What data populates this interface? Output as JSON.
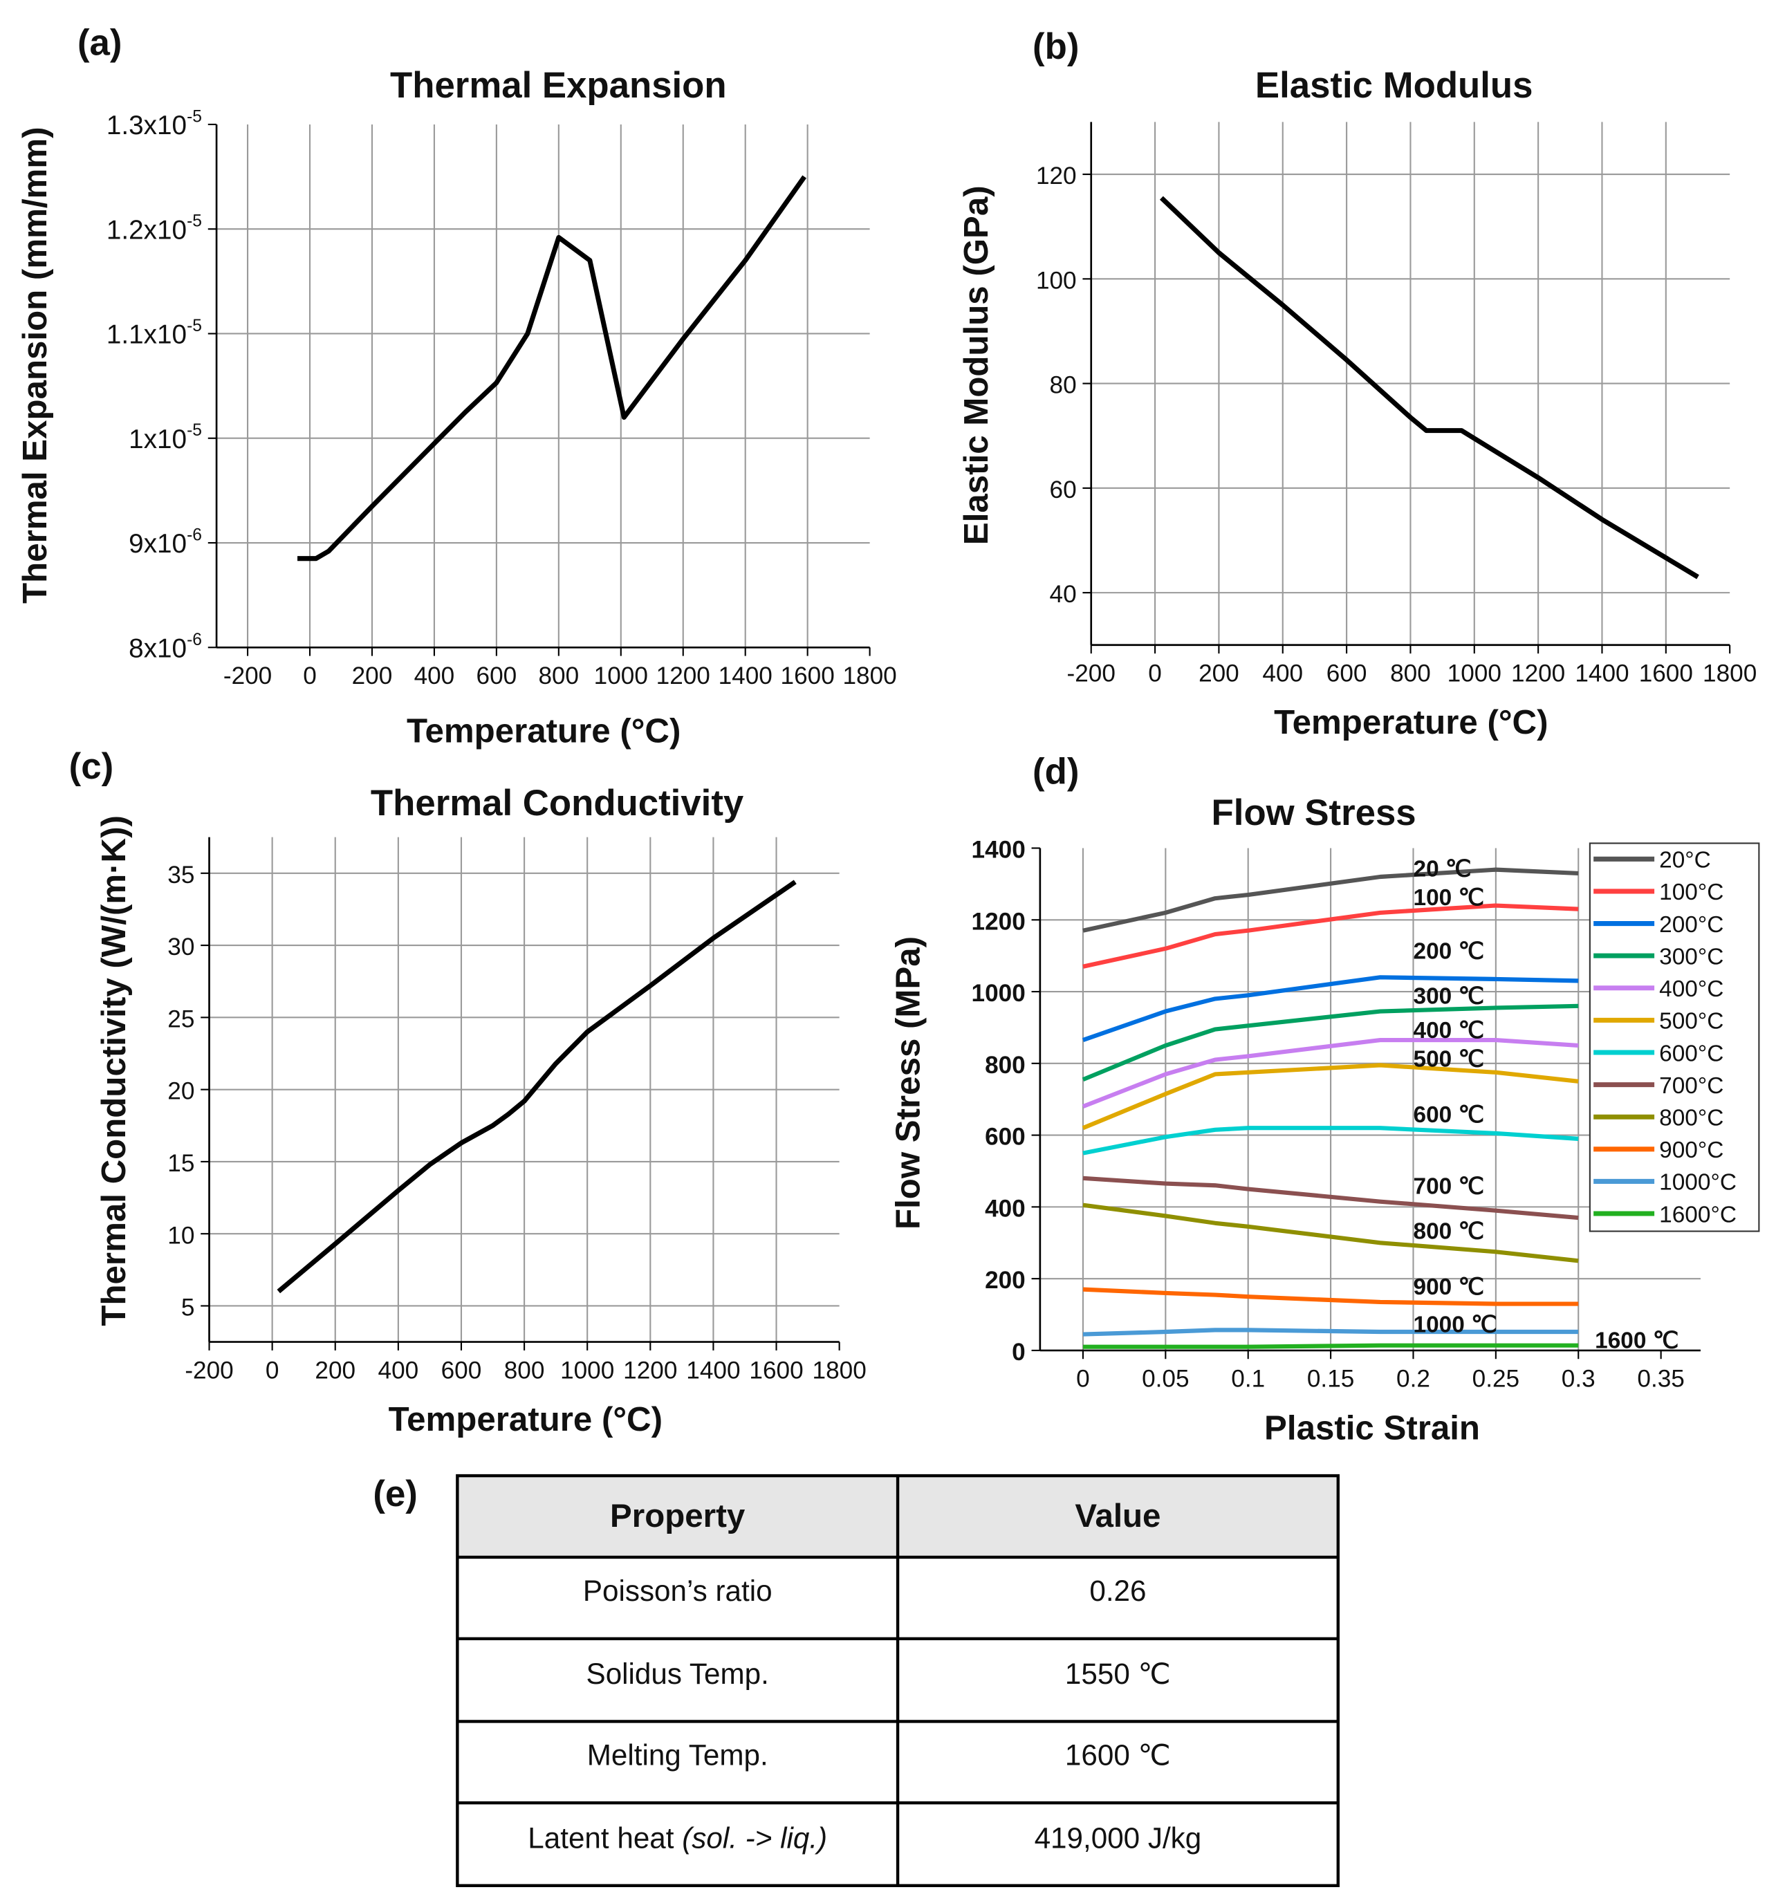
{
  "chart_data": [
    {
      "panel": "(a)",
      "type": "line",
      "title": "Thermal Expansion",
      "xlabel": "Temperature (°C)",
      "ylabel": "Thermal Expansion (mm/mm)",
      "xlim": [
        -300,
        1800
      ],
      "ylim": [
        8e-06,
        1.3e-05
      ],
      "xticks": [
        -200,
        0,
        200,
        400,
        600,
        800,
        1000,
        1200,
        1400,
        1600,
        1800
      ],
      "xtick_labels": [
        "-200",
        "0",
        "200",
        "400",
        "600",
        "800",
        "1000",
        "1200",
        "1400",
        "1600",
        "1800"
      ],
      "yticks": [
        8e-06,
        9e-06,
        1e-05,
        1.1e-05,
        1.2e-05,
        1.3e-05
      ],
      "ytick_labels": [
        [
          "8x10",
          "-6"
        ],
        [
          "9x10",
          "-6"
        ],
        [
          "1x10",
          "-5"
        ],
        [
          "1.1x10",
          "-5"
        ],
        [
          "1.2x10",
          "-5"
        ],
        [
          "1.3x10",
          "-5"
        ]
      ],
      "grid": true,
      "series": [
        {
          "name": "Thermal Expansion",
          "color": "#000000",
          "x": [
            -40,
            20,
            60,
            200,
            400,
            500,
            600,
            700,
            800,
            900,
            1010,
            1200,
            1400,
            1590
          ],
          "y": [
            8.85e-06,
            8.85e-06,
            8.92e-06,
            9.35e-06,
            9.95e-06,
            1.025e-05,
            1.053e-05,
            1.1e-05,
            1.192e-05,
            1.17e-05,
            1.02e-05,
            1.095e-05,
            1.17e-05,
            1.25e-05
          ]
        }
      ]
    },
    {
      "panel": "(b)",
      "type": "line",
      "title": "Elastic Modulus",
      "xlabel": "Temperature (°C)",
      "ylabel": "Elastic Modulus (GPa)",
      "xlim": [
        -200,
        1800
      ],
      "ylim": [
        30,
        130
      ],
      "xticks": [
        -200,
        0,
        200,
        400,
        600,
        800,
        1000,
        1200,
        1400,
        1600,
        1800
      ],
      "xtick_labels": [
        "-200",
        "0",
        "200",
        "400",
        "600",
        "800",
        "1000",
        "1200",
        "1400",
        "1600",
        "1800"
      ],
      "yticks": [
        40,
        60,
        80,
        100,
        120
      ],
      "ytick_labels": [
        "40",
        "60",
        "80",
        "100",
        "120"
      ],
      "grid": true,
      "series": [
        {
          "name": "Elastic Modulus",
          "color": "#000000",
          "x": [
            20,
            200,
            400,
            600,
            800,
            850,
            960,
            1200,
            1400,
            1700
          ],
          "y": [
            115.5,
            105,
            95,
            84.5,
            73.5,
            71,
            71,
            62,
            54,
            43
          ]
        }
      ]
    },
    {
      "panel": "(c)",
      "type": "line",
      "title": "Thermal Conductivity",
      "xlabel": "Temperature (°C)",
      "ylabel": "Thermal Conductivity (W/(m·K))",
      "xlim": [
        -200,
        1800
      ],
      "ylim": [
        2.5,
        37.5
      ],
      "xticks": [
        -200,
        0,
        200,
        400,
        600,
        800,
        1000,
        1200,
        1400,
        1600,
        1800
      ],
      "xtick_labels": [
        "-200",
        "0",
        "200",
        "400",
        "600",
        "800",
        "1000",
        "1200",
        "1400",
        "1600",
        "1800"
      ],
      "yticks": [
        5,
        10,
        15,
        20,
        25,
        30,
        35
      ],
      "ytick_labels": [
        "5",
        "10",
        "15",
        "20",
        "25",
        "30",
        "35"
      ],
      "grid": true,
      "series": [
        {
          "name": "Thermal Conductivity",
          "color": "#000000",
          "x": [
            20,
            200,
            400,
            500,
            600,
            700,
            750,
            800,
            900,
            1000,
            1200,
            1400,
            1660
          ],
          "y": [
            6,
            9.3,
            13,
            14.8,
            16.3,
            17.5,
            18.3,
            19.2,
            21.8,
            24,
            27.2,
            30.5,
            34.4
          ]
        }
      ]
    },
    {
      "panel": "(d)",
      "type": "line",
      "title": "Flow Stress",
      "xlabel": "Plastic Strain",
      "ylabel": "Flow Stress (MPa)",
      "xlim": [
        -0.026,
        0.374
      ],
      "ylim": [
        0,
        1400
      ],
      "xticks": [
        0,
        0.05,
        0.1,
        0.15,
        0.2,
        0.25,
        0.3,
        0.35
      ],
      "xtick_labels": [
        "0",
        "0.05",
        "0.1",
        "0.15",
        "0.2",
        "0.25",
        "0.3",
        "0.35"
      ],
      "yticks": [
        0,
        200,
        400,
        600,
        800,
        1000,
        1200,
        1400
      ],
      "ytick_labels": [
        "0",
        "200",
        "400",
        "600",
        "800",
        "1000",
        "1200",
        "1400"
      ],
      "grid": true,
      "legend_position": "right",
      "x": [
        0,
        0.05,
        0.08,
        0.1,
        0.18,
        0.25,
        0.3
      ],
      "series": [
        {
          "name": "20°C",
          "inline_label": "20 ℃",
          "color": "#555555",
          "values": [
            1170,
            1220,
            1260,
            1270,
            1320,
            1340,
            1330
          ]
        },
        {
          "name": "100°C",
          "inline_label": "100 ℃",
          "color": "#ff4040",
          "values": [
            1070,
            1120,
            1160,
            1170,
            1220,
            1240,
            1230
          ]
        },
        {
          "name": "200°C",
          "inline_label": "200 ℃",
          "color": "#0070e0",
          "values": [
            865,
            945,
            980,
            990,
            1040,
            1035,
            1030
          ]
        },
        {
          "name": "300°C",
          "inline_label": "300 ℃",
          "color": "#00a060",
          "values": [
            755,
            850,
            895,
            905,
            945,
            955,
            960
          ]
        },
        {
          "name": "400°C",
          "inline_label": "400 ℃",
          "color": "#c77ef0",
          "values": [
            680,
            770,
            810,
            820,
            865,
            865,
            850
          ]
        },
        {
          "name": "500°C",
          "inline_label": "500 ℃",
          "color": "#e0a800",
          "values": [
            620,
            715,
            770,
            775,
            795,
            775,
            750
          ]
        },
        {
          "name": "600°C",
          "inline_label": "600 ℃",
          "color": "#00d0d0",
          "values": [
            550,
            595,
            615,
            620,
            620,
            605,
            590
          ]
        },
        {
          "name": "700°C",
          "inline_label": "700 ℃",
          "color": "#8b5050",
          "values": [
            480,
            465,
            460,
            450,
            415,
            390,
            370
          ]
        },
        {
          "name": "800°C",
          "inline_label": "800 ℃",
          "color": "#8f8f00",
          "values": [
            405,
            375,
            355,
            345,
            300,
            275,
            250
          ]
        },
        {
          "name": "900°C",
          "inline_label": "900 ℃",
          "color": "#ff6600",
          "values": [
            170,
            160,
            155,
            150,
            135,
            130,
            130
          ]
        },
        {
          "name": "1000°C",
          "inline_label": "1000 ℃",
          "color": "#4a9ad6",
          "values": [
            45,
            52,
            57,
            57,
            52,
            52,
            52
          ]
        },
        {
          "name": "1600°C",
          "inline_label": "1600 ℃",
          "color": "#22b020",
          "values": [
            10,
            10,
            10,
            10,
            14,
            14,
            14
          ]
        }
      ]
    }
  ],
  "table": {
    "panel": "(e)",
    "headers": [
      "Property",
      "Value"
    ],
    "rows": [
      {
        "property": "Poisson’s ratio",
        "value": "0.26"
      },
      {
        "property": "Solidus Temp.",
        "value": "1550 ℃"
      },
      {
        "property": "Melting Temp.",
        "value": "1600 ℃"
      },
      {
        "property": "Latent heat ",
        "property_italic": "(sol. -> liq.)",
        "value": "419,000 J/kg"
      }
    ]
  }
}
